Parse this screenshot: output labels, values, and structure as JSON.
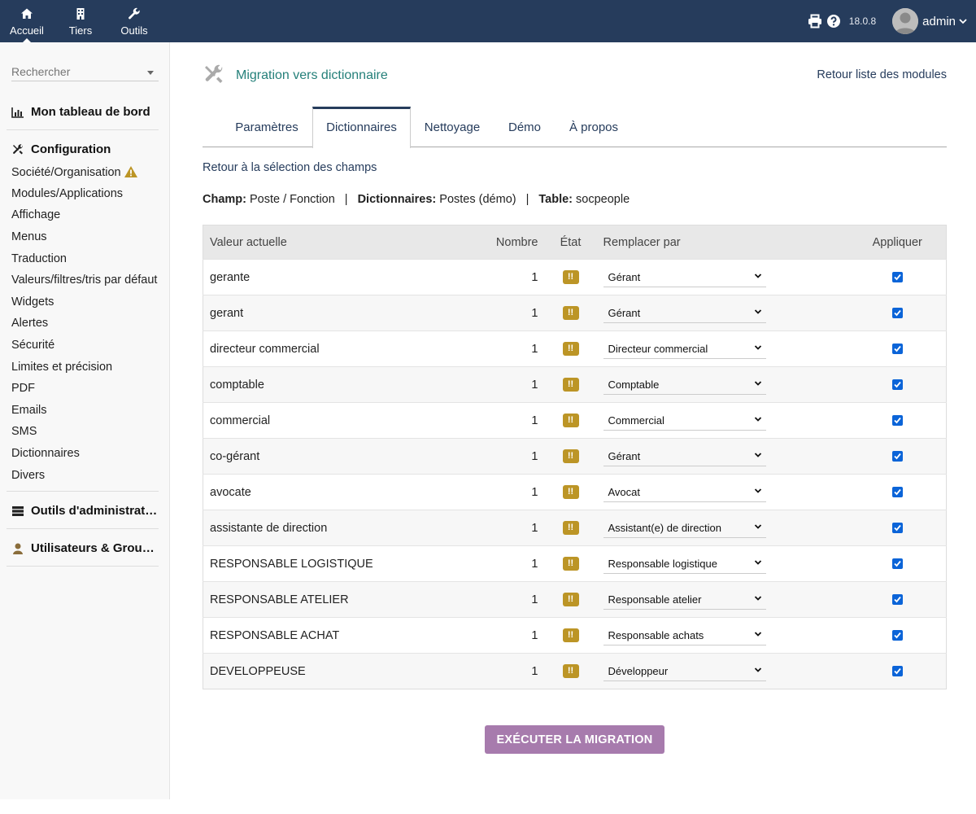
{
  "topbar": {
    "nav": [
      {
        "label": "Accueil",
        "icon": "home-icon"
      },
      {
        "label": "Tiers",
        "icon": "building-icon"
      },
      {
        "label": "Outils",
        "icon": "wrench-icon"
      }
    ],
    "version": "18.0.8",
    "username": "admin",
    "colors": {
      "background": "#263c5c"
    }
  },
  "sidebar": {
    "search_placeholder": "Rechercher",
    "dashboard": "Mon tableau de bord",
    "config_title": "Configuration",
    "config_items": [
      "Société/Organisation",
      "Modules/Applications",
      "Affichage",
      "Menus",
      "Traduction",
      "Valeurs/filtres/tris par défaut",
      "Widgets",
      "Alertes",
      "Sécurité",
      "Limites et précision",
      "PDF",
      "Emails",
      "SMS",
      "Dictionnaires",
      "Divers"
    ],
    "admin_tools": "Outils d'administration",
    "users_groups": "Utilisateurs & Groupes"
  },
  "page": {
    "title": "Migration vers dictionnaire",
    "back_modules": "Retour liste des modules",
    "tabs": [
      "Paramètres",
      "Dictionnaires",
      "Nettoyage",
      "Démo",
      "À propos"
    ],
    "active_tab": "Dictionnaires",
    "back_fields": "Retour à la sélection des champs",
    "info": {
      "champ_label": "Champ:",
      "champ_value": "Poste / Fonction",
      "dict_label": "Dictionnaires:",
      "dict_value": "Postes (démo)",
      "table_label": "Table:",
      "table_value": "socpeople"
    },
    "execute_button": "EXÉCUTER LA MIGRATION",
    "colors": {
      "title": "#25807a",
      "badge": "#bc9526",
      "button": "#a77bad"
    }
  },
  "table": {
    "headers": {
      "valeur": "Valeur actuelle",
      "nombre": "Nombre",
      "etat": "État",
      "remplacer": "Remplacer par",
      "appliquer": "Appliquer"
    },
    "rows": [
      {
        "valeur": "gerante",
        "nombre": "1",
        "etat": "!!",
        "remplacer": "Gérant",
        "appliquer": true
      },
      {
        "valeur": "gerant",
        "nombre": "1",
        "etat": "!!",
        "remplacer": "Gérant",
        "appliquer": true
      },
      {
        "valeur": "directeur commercial",
        "nombre": "1",
        "etat": "!!",
        "remplacer": "Directeur commercial",
        "appliquer": true
      },
      {
        "valeur": "comptable",
        "nombre": "1",
        "etat": "!!",
        "remplacer": "Comptable",
        "appliquer": true
      },
      {
        "valeur": "commercial",
        "nombre": "1",
        "etat": "!!",
        "remplacer": "Commercial",
        "appliquer": true
      },
      {
        "valeur": "co-gérant",
        "nombre": "1",
        "etat": "!!",
        "remplacer": "Gérant",
        "appliquer": true
      },
      {
        "valeur": "avocate",
        "nombre": "1",
        "etat": "!!",
        "remplacer": "Avocat",
        "appliquer": true
      },
      {
        "valeur": "assistante de direction",
        "nombre": "1",
        "etat": "!!",
        "remplacer": "Assistant(e) de direction",
        "appliquer": true
      },
      {
        "valeur": "RESPONSABLE LOGISTIQUE",
        "nombre": "1",
        "etat": "!!",
        "remplacer": "Responsable logistique",
        "appliquer": true
      },
      {
        "valeur": "RESPONSABLE ATELIER",
        "nombre": "1",
        "etat": "!!",
        "remplacer": "Responsable atelier",
        "appliquer": true
      },
      {
        "valeur": "RESPONSABLE ACHAT",
        "nombre": "1",
        "etat": "!!",
        "remplacer": "Responsable achats",
        "appliquer": true
      },
      {
        "valeur": "DEVELOPPEUSE",
        "nombre": "1",
        "etat": "!!",
        "remplacer": "Développeur",
        "appliquer": true
      }
    ]
  }
}
